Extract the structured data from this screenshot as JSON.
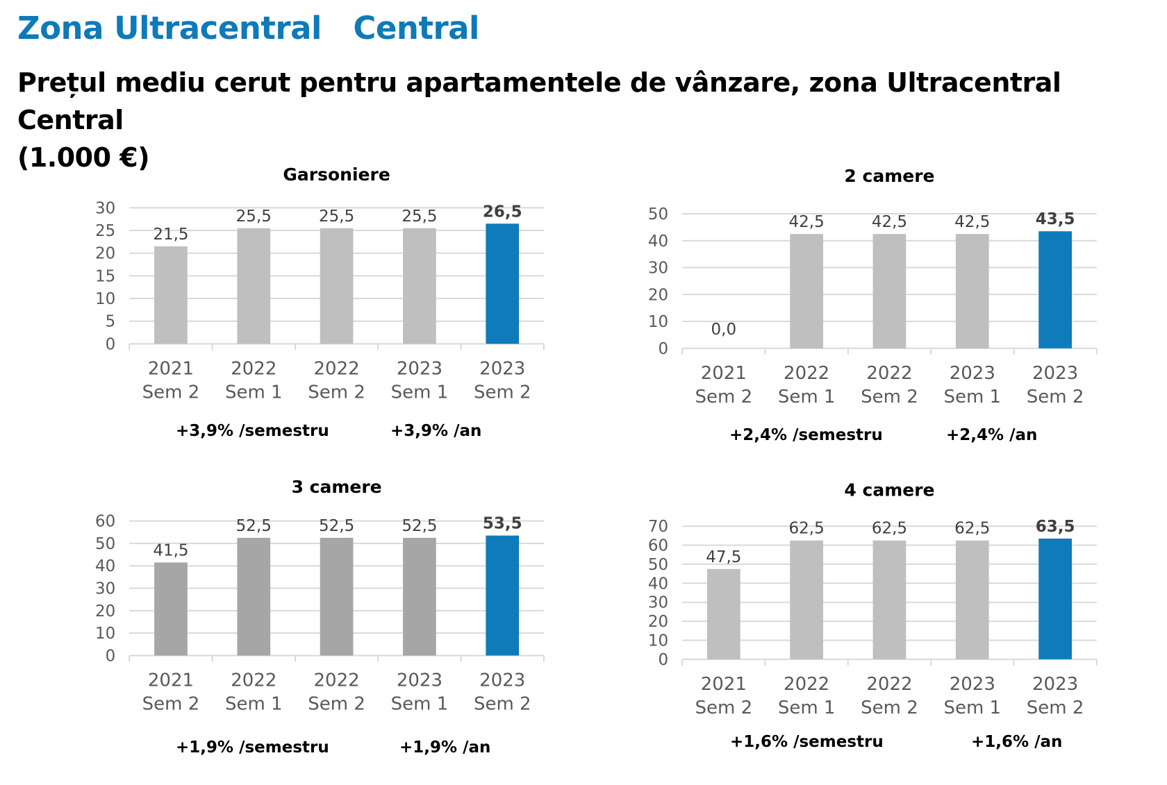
{
  "header": {
    "zone_title": "Zona Ultracentral   Central",
    "page_title": "Prețul mediu cerut pentru apartamentele de vânzare, zona Ultracentral   Central\n(1.000 €)"
  },
  "colors": {
    "accent": "#0e7ab8",
    "highlight_bar": "#0f7bba",
    "bar_gray": "#bfbfbf",
    "bar_gray_dark": "#a6a6a6",
    "grid": "#d9d9d9",
    "axis_text": "#595959"
  },
  "chart_data": [
    {
      "type": "bar",
      "title": "Garsoniere",
      "categories": [
        [
          "2021",
          "Sem 2"
        ],
        [
          "2022",
          "Sem 1"
        ],
        [
          "2022",
          "Sem 2"
        ],
        [
          "2023",
          "Sem 1"
        ],
        [
          "2023",
          "Sem 2"
        ]
      ],
      "values": [
        21.5,
        25.5,
        25.5,
        25.5,
        26.5
      ],
      "labels": [
        "21,5",
        "25,5",
        "25,5",
        "25,5",
        "26,5"
      ],
      "highlight_index": 4,
      "ylim": [
        0,
        30
      ],
      "yticks": [
        0,
        5,
        10,
        15,
        20,
        25,
        30
      ],
      "grid": true,
      "xlabel": "",
      "ylabel": "",
      "growth": {
        "semester": "+3,9% /semestru",
        "year": "+3,9% /an"
      }
    },
    {
      "type": "bar",
      "title": "2 camere",
      "categories": [
        [
          "2021",
          "Sem 2"
        ],
        [
          "2022",
          "Sem 1"
        ],
        [
          "2022",
          "Sem 2"
        ],
        [
          "2023",
          "Sem 1"
        ],
        [
          "2023",
          "Sem 2"
        ]
      ],
      "values": [
        0.0,
        42.5,
        42.5,
        42.5,
        43.5
      ],
      "labels": [
        "0,0",
        "42,5",
        "42,5",
        "42,5",
        "43,5"
      ],
      "highlight_index": 4,
      "ylim": [
        0,
        50
      ],
      "yticks": [
        0,
        10,
        20,
        30,
        40,
        50
      ],
      "grid": true,
      "xlabel": "",
      "ylabel": "",
      "growth": {
        "semester": "+2,4% /semestru",
        "year": "+2,4% /an"
      }
    },
    {
      "type": "bar",
      "title": "3 camere",
      "categories": [
        [
          "2021",
          "Sem 2"
        ],
        [
          "2022",
          "Sem 1"
        ],
        [
          "2022",
          "Sem 2"
        ],
        [
          "2023",
          "Sem 1"
        ],
        [
          "2023",
          "Sem 2"
        ]
      ],
      "values": [
        41.5,
        52.5,
        52.5,
        52.5,
        53.5
      ],
      "labels": [
        "41,5",
        "52,5",
        "52,5",
        "52,5",
        "53,5"
      ],
      "highlight_index": 4,
      "ylim": [
        0,
        60
      ],
      "yticks": [
        0,
        10,
        20,
        30,
        40,
        50,
        60
      ],
      "grid": true,
      "xlabel": "",
      "ylabel": "",
      "growth": {
        "semester": "+1,9% /semestru",
        "year": "+1,9% /an"
      }
    },
    {
      "type": "bar",
      "title": "4 camere",
      "categories": [
        [
          "2021",
          "Sem 2"
        ],
        [
          "2022",
          "Sem 1"
        ],
        [
          "2022",
          "Sem 2"
        ],
        [
          "2023",
          "Sem 1"
        ],
        [
          "2023",
          "Sem 2"
        ]
      ],
      "values": [
        47.5,
        62.5,
        62.5,
        62.5,
        63.5
      ],
      "labels": [
        "47,5",
        "62,5",
        "62,5",
        "62,5",
        "63,5"
      ],
      "highlight_index": 4,
      "ylim": [
        0,
        70
      ],
      "yticks": [
        0,
        10,
        20,
        30,
        40,
        50,
        60,
        70
      ],
      "grid": true,
      "xlabel": "",
      "ylabel": "",
      "growth": {
        "semester": "+1,6% /semestru",
        "year": "+1,6% /an"
      }
    }
  ]
}
